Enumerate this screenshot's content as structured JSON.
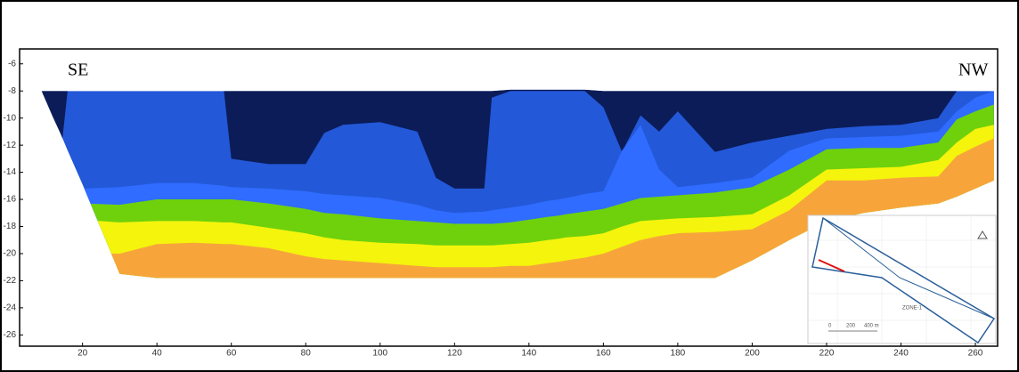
{
  "chart_data": {
    "type": "section",
    "left_label": "SE",
    "right_label": "NW",
    "x": [
      9,
      12,
      14,
      16,
      20,
      30,
      40,
      50,
      58,
      60,
      70,
      80,
      85,
      90,
      100,
      110,
      115,
      120,
      128,
      130,
      135,
      140,
      145,
      148,
      150,
      155,
      160,
      165,
      170,
      175,
      180,
      190,
      200,
      210,
      220,
      230,
      240,
      250,
      255,
      260,
      265
    ],
    "top": [
      -8,
      -8,
      -8,
      -8,
      -8,
      -8,
      -8,
      -8,
      -8,
      -8,
      -8,
      -8,
      -8,
      -8,
      -8,
      -8,
      -8,
      -8,
      -8,
      -8,
      -7.9,
      -7.9,
      -7.9,
      -7.9,
      -7.9,
      -7.9,
      -8,
      -8,
      -8,
      -8,
      -8,
      -8,
      -8,
      -8,
      -8,
      -8,
      -8,
      -8,
      -8,
      -8,
      -8
    ],
    "bottom": [
      -8,
      -9.9,
      -11.1,
      -12.4,
      -14.9,
      -21.5,
      -21.8,
      -21.8,
      -21.8,
      -21.8,
      -21.8,
      -21.8,
      -21.8,
      -21.8,
      -21.8,
      -21.8,
      -21.8,
      -21.8,
      -21.8,
      -21.8,
      -21.8,
      -21.8,
      -21.8,
      -21.8,
      -21.8,
      -21.8,
      -21.8,
      -21.8,
      -21.8,
      -21.8,
      -21.8,
      -21.8,
      -20.5,
      -19,
      -17.6,
      -17,
      -16.6,
      -16.3,
      -15.8,
      -15.2,
      -14.6
    ],
    "color": "#2358d8",
    "dark_zone": {
      "color": "#0b1c58",
      "values": [
        -8,
        -10.5,
        -13,
        -8,
        -8,
        -8,
        -8,
        -8,
        -8,
        -13,
        -13.4,
        -13.4,
        -11.1,
        -10.5,
        -10.3,
        -11,
        -14.4,
        -15.2,
        -15.2,
        -8.5,
        -8,
        -8,
        -8,
        -8,
        -8,
        -8,
        -9.2,
        -12.5,
        -9.8,
        -11,
        -9.5,
        -12.5,
        -11.8,
        -11.3,
        -10.8,
        -10.6,
        -10.5,
        -10,
        -8,
        -8,
        -8
      ]
    },
    "series": [
      {
        "color": "#2f6cff",
        "values": [
          -15.2,
          -15.2,
          -15.2,
          -15.2,
          -15.2,
          -15.1,
          -14.8,
          -14.8,
          -15,
          -15.1,
          -15.2,
          -15.4,
          -15.6,
          -15.7,
          -15.9,
          -16.4,
          -16.8,
          -17,
          -16.9,
          -16.8,
          -16.6,
          -16.4,
          -16.1,
          -16,
          -15.9,
          -15.6,
          -15.4,
          -12.4,
          -10.5,
          -13.8,
          -15.1,
          -14.8,
          -14.4,
          -12.4,
          -11.5,
          -11.4,
          -11.3,
          -11,
          -9.5,
          -8.5,
          -8
        ]
      },
      {
        "color": "#6fd10c",
        "values": [
          -16.3,
          -16.3,
          -16.3,
          -16.3,
          -16.3,
          -16.4,
          -16,
          -16,
          -16,
          -16,
          -16.3,
          -16.7,
          -17,
          -17.1,
          -17.4,
          -17.6,
          -17.7,
          -17.8,
          -17.8,
          -17.8,
          -17.7,
          -17.5,
          -17.3,
          -17.2,
          -17.1,
          -16.9,
          -16.7,
          -16.3,
          -15.9,
          -15.8,
          -15.7,
          -15.5,
          -15.1,
          -13.8,
          -12.3,
          -12.2,
          -12.2,
          -11.8,
          -10.1,
          -9.5,
          -9
        ]
      },
      {
        "color": "#f4f40c",
        "values": [
          -17.5,
          -17.5,
          -17.5,
          -17.5,
          -17.5,
          -17.7,
          -17.6,
          -17.6,
          -17.7,
          -17.7,
          -18.1,
          -18.5,
          -18.8,
          -19,
          -19.2,
          -19.3,
          -19.4,
          -19.4,
          -19.4,
          -19.4,
          -19.3,
          -19.2,
          -19,
          -18.9,
          -18.8,
          -18.7,
          -18.5,
          -18,
          -17.6,
          -17.5,
          -17.4,
          -17.3,
          -17.1,
          -15.7,
          -13.8,
          -13.7,
          -13.6,
          -13.1,
          -11.8,
          -10.8,
          -10.5
        ]
      },
      {
        "color": "#f7a53a",
        "values": [
          -20,
          -20,
          -20,
          -20,
          -20,
          -20,
          -19.3,
          -19.2,
          -19.3,
          -19.3,
          -19.6,
          -20.2,
          -20.4,
          -20.5,
          -20.7,
          -20.9,
          -21,
          -21,
          -21,
          -21,
          -20.9,
          -20.9,
          -20.7,
          -20.6,
          -20.5,
          -20.3,
          -20,
          -19.5,
          -19,
          -18.7,
          -18.5,
          -18.4,
          -18.2,
          -16.8,
          -14.6,
          -14.6,
          -14.4,
          -14.3,
          -12.8,
          -12.1,
          -11.5
        ]
      }
    ],
    "xlim": [
      5,
      265.5
    ],
    "ylim": [
      -26.7,
      -4.9
    ],
    "xticks": [
      20,
      40,
      60,
      80,
      100,
      120,
      140,
      160,
      180,
      200,
      220,
      240,
      260
    ],
    "yticks": [
      -6,
      -8,
      -10,
      -12,
      -14,
      -16,
      -18,
      -20,
      -22,
      -24,
      -26
    ],
    "inset": {
      "scale": [
        "0",
        "200",
        "400 m"
      ],
      "zone": "ZONE-1"
    }
  }
}
